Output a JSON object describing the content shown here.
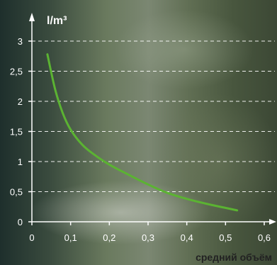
{
  "chart_data": {
    "type": "line",
    "title": "",
    "xlabel": "средний объём",
    "ylabel": "l/m³",
    "xlim": [
      0,
      0.6
    ],
    "ylim": [
      0,
      3
    ],
    "grid": "horizontal-dashed",
    "x_ticks": [
      "0",
      "0,1",
      "0,2",
      "0,3",
      "0,4",
      "0,5",
      "0,6"
    ],
    "y_ticks": [
      "0",
      "0,5",
      "1",
      "1,5",
      "2",
      "2,5",
      "3"
    ],
    "series": [
      {
        "color": "#5bb332",
        "x": [
          0.04,
          0.06,
          0.08,
          0.1,
          0.13,
          0.16,
          0.2,
          0.25,
          0.3,
          0.35,
          0.4,
          0.45,
          0.5,
          0.53
        ],
        "y": [
          2.78,
          2.2,
          1.8,
          1.53,
          1.28,
          1.12,
          0.95,
          0.78,
          0.62,
          0.48,
          0.38,
          0.3,
          0.23,
          0.19
        ]
      }
    ]
  },
  "colors": {
    "axis": "#ffffff",
    "grid": "#ffffff",
    "tick_text": "#ffffff",
    "xlabel_text": "#222222"
  }
}
